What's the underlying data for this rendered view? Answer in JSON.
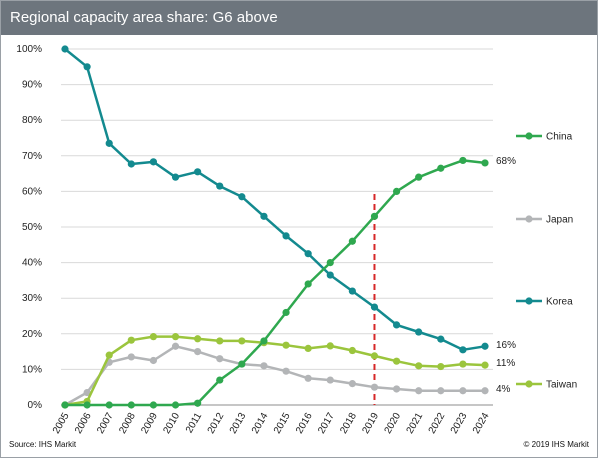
{
  "header": {
    "title": "Regional capacity area share: G6 above"
  },
  "footer": {
    "source": "Source: IHS Markit",
    "copyright": "© 2019 IHS Markit"
  },
  "colors": {
    "China": "#2fa84f",
    "Japan": "#b3b5b7",
    "Korea": "#138a8f",
    "Taiwan": "#9bc53d",
    "marker_line": "#d62728",
    "grid": "#d9d9d9"
  },
  "chart_data": {
    "type": "line",
    "title": "Regional capacity area share: G6 above",
    "x": [
      "2005",
      "2006",
      "2007",
      "2008",
      "2009",
      "2010",
      "2011",
      "2012",
      "2013",
      "2014",
      "2015",
      "2016",
      "2017",
      "2018",
      "2019",
      "2020",
      "2021",
      "2022",
      "2023",
      "2024"
    ],
    "y_ticks": [
      "0%",
      "10%",
      "20%",
      "30%",
      "40%",
      "50%",
      "60%",
      "70%",
      "80%",
      "90%",
      "100%"
    ],
    "ylim": [
      0,
      100
    ],
    "grid": true,
    "legend_position": "right",
    "vertical_marker": "2019",
    "series": [
      {
        "name": "China",
        "values": [
          0,
          0,
          0,
          0,
          0,
          0,
          0.5,
          7,
          11.5,
          18,
          26,
          34,
          40,
          46,
          53,
          60,
          64,
          66.5,
          68.7,
          68
        ],
        "end_label": "68%"
      },
      {
        "name": "Japan",
        "values": [
          0,
          3.5,
          12,
          13.5,
          12.5,
          16.5,
          15,
          13,
          11.5,
          11,
          9.5,
          7.5,
          7,
          6,
          5,
          4.5,
          4,
          4,
          4,
          4
        ],
        "end_label": "4%"
      },
      {
        "name": "Korea",
        "values": [
          100,
          95,
          73.5,
          67.7,
          68.3,
          64,
          65.5,
          61.5,
          58.5,
          53,
          47.5,
          42.5,
          36.5,
          32,
          27.5,
          22.5,
          20.5,
          18.5,
          15.5,
          16.5
        ],
        "end_label": "16%"
      },
      {
        "name": "Taiwan",
        "values": [
          0,
          1,
          14,
          18.2,
          19.2,
          19.2,
          18.6,
          18,
          18,
          17.5,
          16.8,
          15.9,
          16.6,
          15.3,
          13.8,
          12.3,
          11,
          10.8,
          11.5,
          11.2
        ],
        "end_label": "11%"
      }
    ]
  }
}
